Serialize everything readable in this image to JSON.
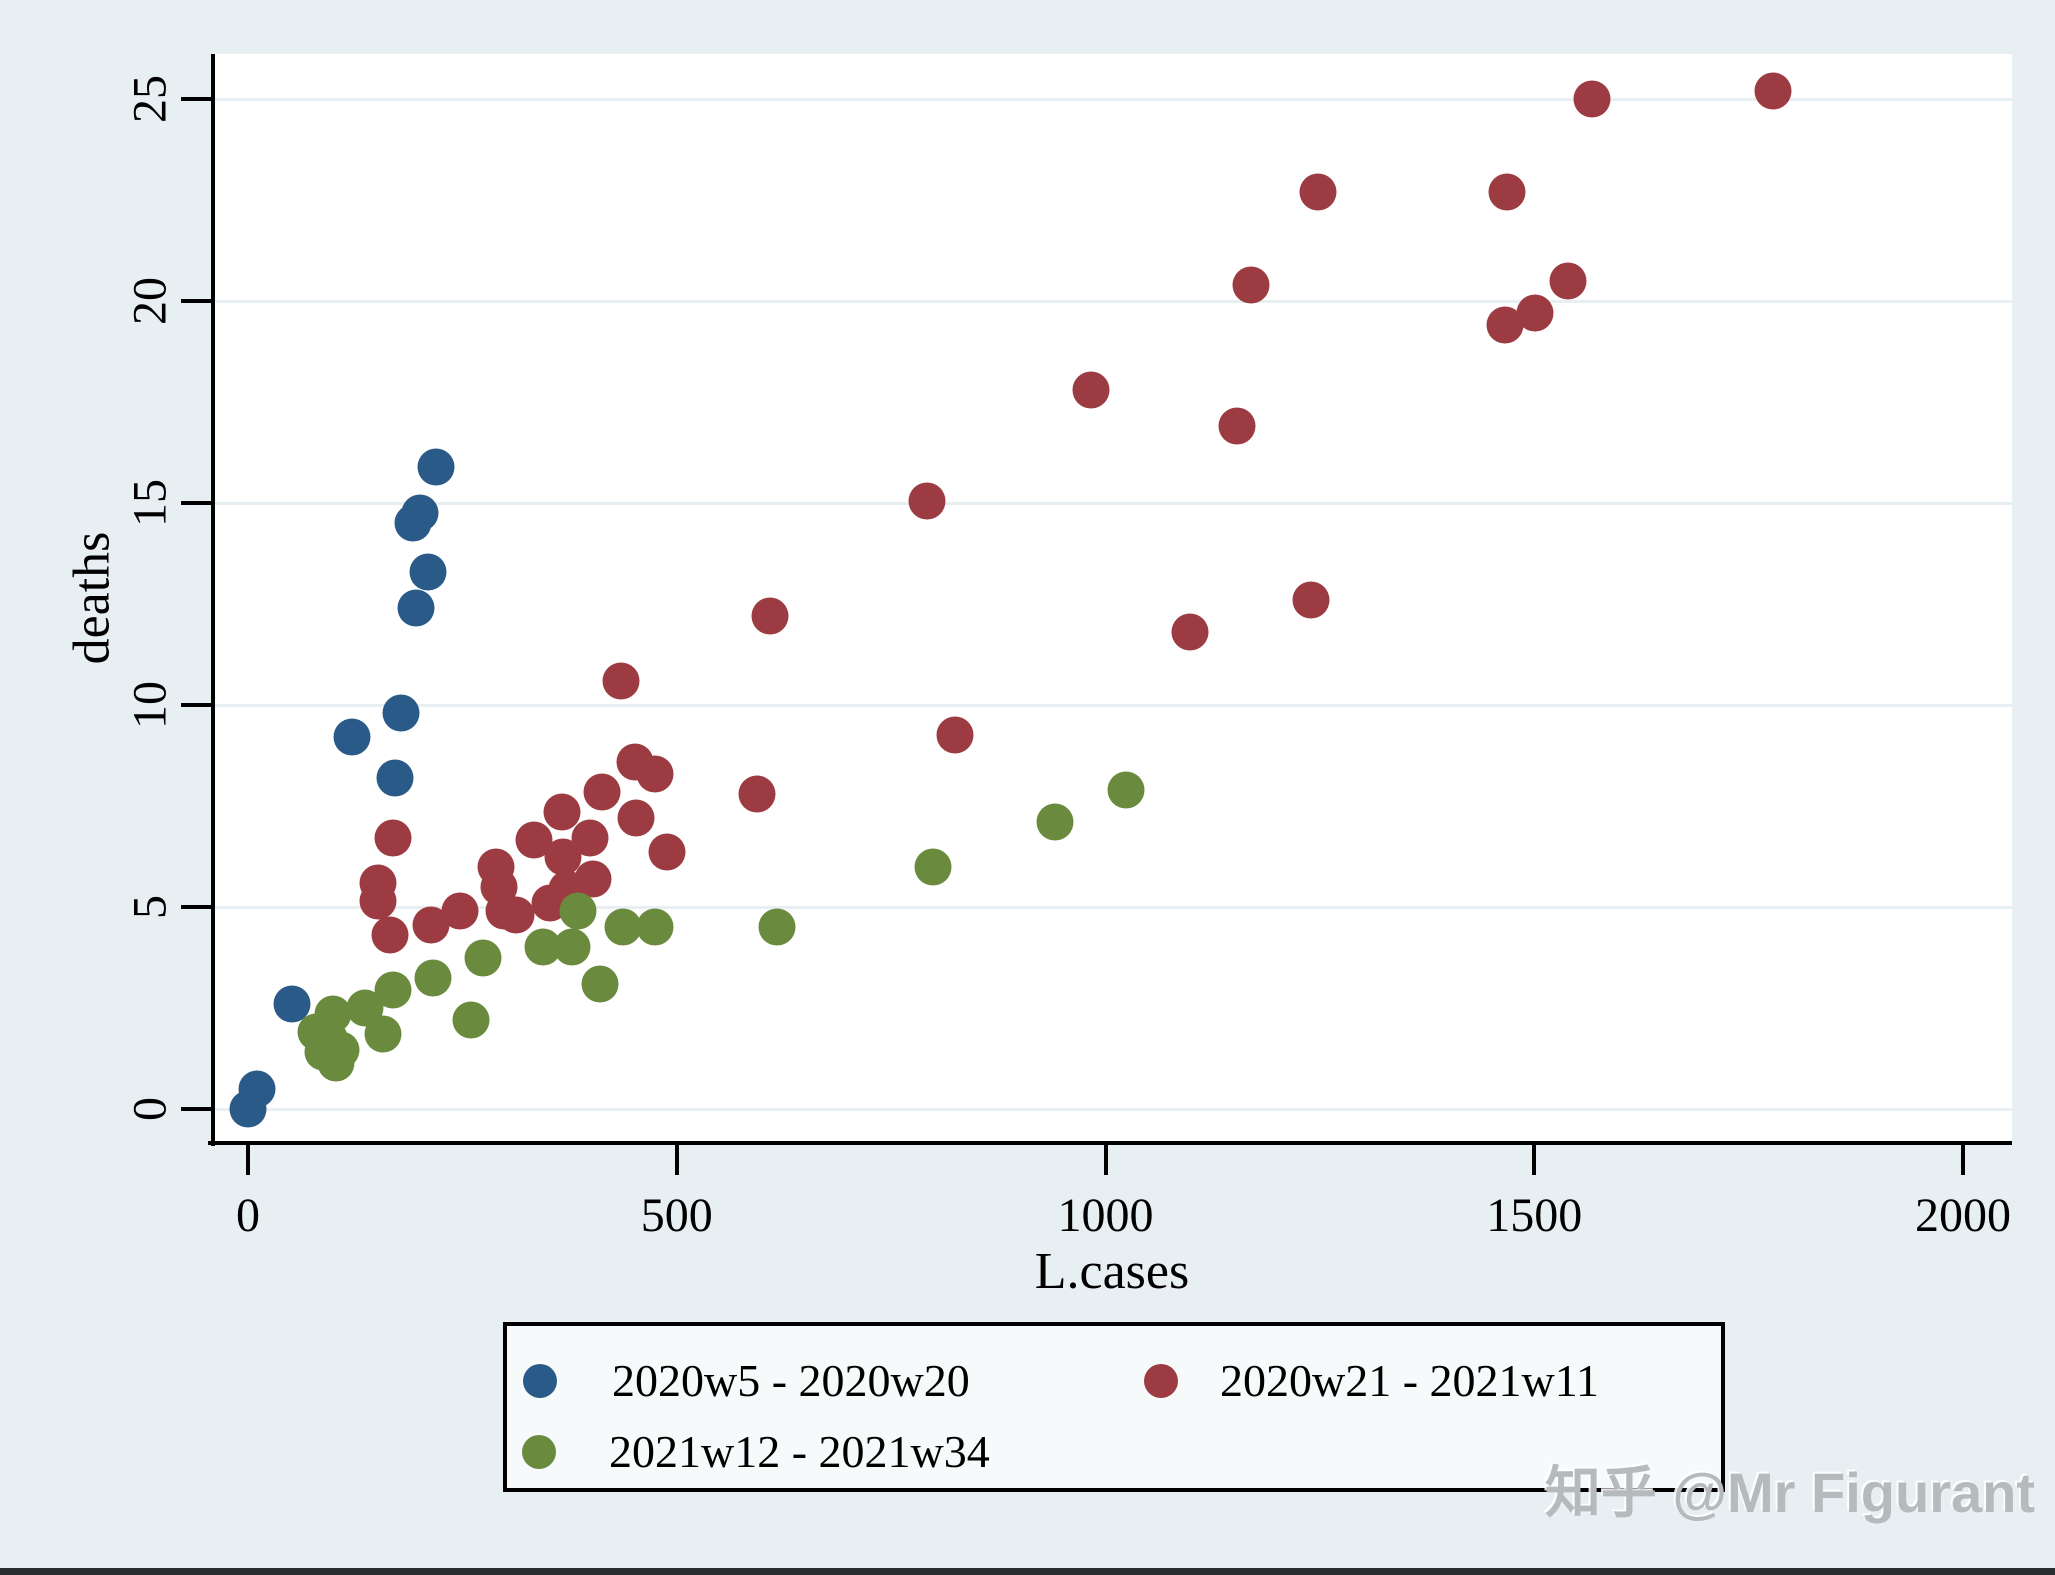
{
  "watermark": {
    "text": "知乎 @Mr Figurant",
    "color": "#b5babc"
  },
  "colors": {
    "background": "#e8eff2",
    "plot_background": "#ffffff",
    "gridline": "#e7eff2",
    "axis": "#000000",
    "legend_background": "#f6fafb",
    "series1": "#2a5a88",
    "series2": "#9c3b42",
    "series3": "#6a8b3e"
  },
  "chart_data": {
    "type": "scatter",
    "title": "",
    "xlabel": "L.cases",
    "ylabel": "deaths",
    "x_ticks": [
      0,
      500,
      1000,
      1500,
      2000
    ],
    "y_ticks": [
      0,
      5,
      10,
      15,
      20,
      25
    ],
    "xlim": [
      -41,
      2057
    ],
    "ylim": [
      -0.85,
      26.1
    ],
    "grid": "horizontal",
    "legend_position": "bottom",
    "series": [
      {
        "name": "2020w5 - 2020w20",
        "color": "#2a5a88",
        "points": [
          [
            0,
            0
          ],
          [
            10,
            0.5
          ],
          [
            51,
            2.6
          ],
          [
            121,
            9.2
          ],
          [
            171,
            8.2
          ],
          [
            178,
            9.8
          ],
          [
            196,
            12.4
          ],
          [
            210,
            13.3
          ],
          [
            193,
            14.5
          ],
          [
            200,
            14.75
          ],
          [
            219,
            15.9
          ]
        ]
      },
      {
        "name": "2020w21 - 2021w11",
        "color": "#9c3b42",
        "points": [
          [
            152,
            5.6
          ],
          [
            152,
            5.15
          ],
          [
            166,
            4.3
          ],
          [
            169,
            6.7
          ],
          [
            213,
            4.55
          ],
          [
            247,
            4.9
          ],
          [
            289,
            6.0
          ],
          [
            293,
            5.5
          ],
          [
            299,
            4.9
          ],
          [
            313,
            4.8
          ],
          [
            333,
            6.65
          ],
          [
            352,
            5.1
          ],
          [
            366,
            7.35
          ],
          [
            367,
            6.25
          ],
          [
            372,
            5.45
          ],
          [
            399,
            6.7
          ],
          [
            402,
            5.7
          ],
          [
            413,
            7.85
          ],
          [
            435,
            10.6
          ],
          [
            451,
            8.6
          ],
          [
            453,
            7.2
          ],
          [
            475,
            8.3
          ],
          [
            489,
            6.35
          ],
          [
            594,
            7.8
          ],
          [
            609,
            12.2
          ],
          [
            792,
            15.05
          ],
          [
            824,
            9.25
          ],
          [
            983,
            17.8
          ],
          [
            1099,
            11.8
          ],
          [
            1153,
            16.9
          ],
          [
            1170,
            20.4
          ],
          [
            1240,
            12.6
          ],
          [
            1248,
            22.7
          ],
          [
            1466,
            19.4
          ],
          [
            1468,
            22.7
          ],
          [
            1501,
            19.7
          ],
          [
            1539,
            20.5
          ],
          [
            1567,
            25.0
          ],
          [
            1779,
            25.2
          ]
        ]
      },
      {
        "name": "2021w12 - 2021w34",
        "color": "#6a8b3e",
        "points": [
          [
            79,
            1.9
          ],
          [
            87,
            1.4
          ],
          [
            95,
            1.75
          ],
          [
            99,
            2.35
          ],
          [
            103,
            1.15
          ],
          [
            108,
            1.45
          ],
          [
            136,
            2.5
          ],
          [
            157,
            1.85
          ],
          [
            169,
            2.95
          ],
          [
            216,
            3.25
          ],
          [
            260,
            2.2
          ],
          [
            274,
            3.75
          ],
          [
            344,
            4.0
          ],
          [
            378,
            4.0
          ],
          [
            385,
            4.9
          ],
          [
            411,
            3.1
          ],
          [
            437,
            4.5
          ],
          [
            475,
            4.5
          ],
          [
            617,
            4.5
          ],
          [
            799,
            6.0
          ],
          [
            941,
            7.1
          ],
          [
            1024,
            7.9
          ]
        ]
      }
    ]
  }
}
